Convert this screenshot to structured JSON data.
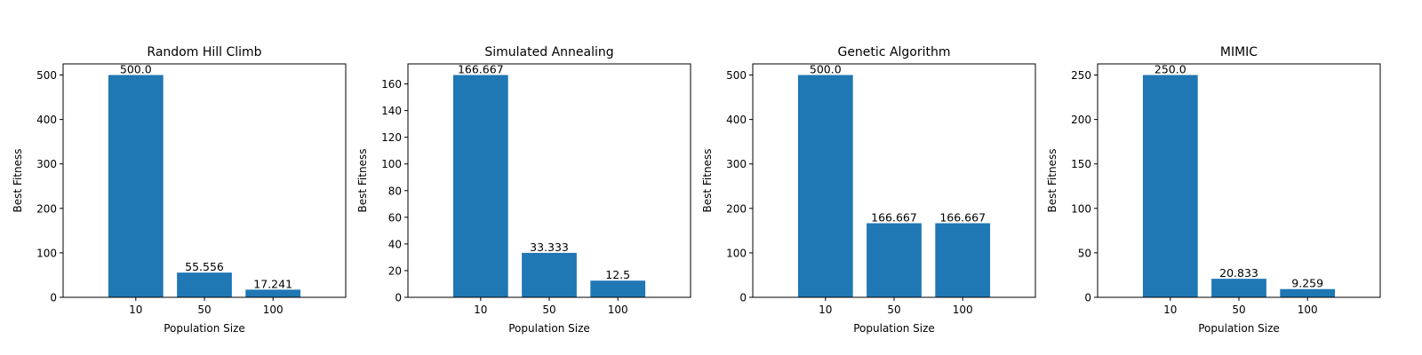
{
  "figure": {
    "suptitle": "",
    "bar_color": "#1f77b4"
  },
  "chart_data": [
    {
      "type": "bar",
      "title": "Random Hill Climb",
      "xlabel": "Population Size",
      "ylabel": "Best Fitness",
      "categories": [
        "10",
        "50",
        "100"
      ],
      "values": [
        500.0,
        55.556,
        17.241
      ],
      "value_labels": [
        "500.0",
        "55.556",
        "17.241"
      ],
      "ylim": [
        0,
        525
      ],
      "yticks": [
        0,
        100,
        200,
        300,
        400,
        500
      ],
      "grid": false,
      "legend": "none"
    },
    {
      "type": "bar",
      "title": "Simulated Annealing",
      "xlabel": "Population Size",
      "ylabel": "Best Fitness",
      "categories": [
        "10",
        "50",
        "100"
      ],
      "values": [
        166.667,
        33.333,
        12.5
      ],
      "value_labels": [
        "166.667",
        "33.333",
        "12.5"
      ],
      "ylim": [
        0,
        175
      ],
      "yticks": [
        0,
        20,
        40,
        60,
        80,
        100,
        120,
        140,
        160
      ],
      "grid": false,
      "legend": "none"
    },
    {
      "type": "bar",
      "title": "Genetic Algorithm",
      "xlabel": "Population Size",
      "ylabel": "Best Fitness",
      "categories": [
        "10",
        "50",
        "100"
      ],
      "values": [
        500.0,
        166.667,
        166.667
      ],
      "value_labels": [
        "500.0",
        "166.667",
        "166.667"
      ],
      "ylim": [
        0,
        525
      ],
      "yticks": [
        0,
        100,
        200,
        300,
        400,
        500
      ],
      "grid": false,
      "legend": "none"
    },
    {
      "type": "bar",
      "title": "MIMIC",
      "xlabel": "Population Size",
      "ylabel": "Best Fitness",
      "categories": [
        "10",
        "50",
        "100"
      ],
      "values": [
        250.0,
        20.833,
        9.259
      ],
      "value_labels": [
        "250.0",
        "20.833",
        "9.259"
      ],
      "ylim": [
        0,
        262.5
      ],
      "yticks": [
        0,
        50,
        100,
        150,
        200,
        250
      ],
      "grid": false,
      "legend": "none"
    }
  ]
}
